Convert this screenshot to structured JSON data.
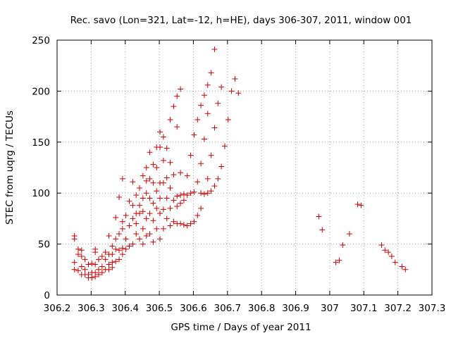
{
  "chart_data": {
    "type": "scatter",
    "title": "Rec. savo (Lon=321, Lat=-12, h=HE), days 306-307, 2011, window 001",
    "xlabel": "GPS time / Days of year 2011",
    "ylabel": "STEC from uqrg / TECUs",
    "xlim": [
      306.2,
      307.3
    ],
    "ylim": [
      0,
      250
    ],
    "xticks": [
      "306.2",
      "306.3",
      "306.4",
      "306.5",
      "306.6",
      "306.7",
      "306.8",
      "306.9",
      "307",
      "307.1",
      "307.2",
      "307.3"
    ],
    "yticks": [
      "0",
      "50",
      "100",
      "150",
      "200",
      "250"
    ],
    "grid": true,
    "marker": "plus",
    "color": "#cc0000",
    "points": [
      [
        306.251,
        58
      ],
      [
        306.251,
        55
      ],
      [
        306.251,
        32
      ],
      [
        306.251,
        25
      ],
      [
        306.262,
        45
      ],
      [
        306.262,
        40
      ],
      [
        306.262,
        24
      ],
      [
        306.272,
        44
      ],
      [
        306.272,
        38
      ],
      [
        306.272,
        28
      ],
      [
        306.272,
        20
      ],
      [
        306.282,
        35
      ],
      [
        306.282,
        25
      ],
      [
        306.282,
        20
      ],
      [
        306.292,
        30
      ],
      [
        306.292,
        20
      ],
      [
        306.292,
        17
      ],
      [
        306.302,
        31
      ],
      [
        306.302,
        22
      ],
      [
        306.302,
        17
      ],
      [
        306.312,
        45
      ],
      [
        306.312,
        42
      ],
      [
        306.312,
        30
      ],
      [
        306.312,
        22
      ],
      [
        306.312,
        18
      ],
      [
        306.322,
        35
      ],
      [
        306.322,
        25
      ],
      [
        306.322,
        20
      ],
      [
        306.332,
        38
      ],
      [
        306.332,
        28
      ],
      [
        306.332,
        22
      ],
      [
        306.342,
        42
      ],
      [
        306.342,
        35
      ],
      [
        306.342,
        25
      ],
      [
        306.352,
        58
      ],
      [
        306.352,
        40
      ],
      [
        306.352,
        30
      ],
      [
        306.352,
        25
      ],
      [
        306.362,
        48
      ],
      [
        306.362,
        40
      ],
      [
        306.362,
        32
      ],
      [
        306.362,
        27
      ],
      [
        306.372,
        76
      ],
      [
        306.372,
        55
      ],
      [
        306.372,
        45
      ],
      [
        306.372,
        33
      ],
      [
        306.382,
        96
      ],
      [
        306.382,
        60
      ],
      [
        306.382,
        44
      ],
      [
        306.382,
        35
      ],
      [
        306.392,
        114
      ],
      [
        306.392,
        72
      ],
      [
        306.392,
        65
      ],
      [
        306.392,
        46
      ],
      [
        306.392,
        40
      ],
      [
        306.402,
        78
      ],
      [
        306.402,
        55
      ],
      [
        306.402,
        45
      ],
      [
        306.412,
        92
      ],
      [
        306.412,
        68
      ],
      [
        306.412,
        48
      ],
      [
        306.422,
        111
      ],
      [
        306.422,
        88
      ],
      [
        306.422,
        75
      ],
      [
        306.422,
        50
      ],
      [
        306.432,
        98
      ],
      [
        306.432,
        80
      ],
      [
        306.432,
        70
      ],
      [
        306.432,
        60
      ],
      [
        306.442,
        105
      ],
      [
        306.442,
        88
      ],
      [
        306.442,
        80
      ],
      [
        306.442,
        55
      ],
      [
        306.452,
        117
      ],
      [
        306.452,
        95
      ],
      [
        306.452,
        82
      ],
      [
        306.452,
        65
      ],
      [
        306.452,
        50
      ],
      [
        306.462,
        125
      ],
      [
        306.462,
        112
      ],
      [
        306.462,
        100
      ],
      [
        306.462,
        75
      ],
      [
        306.462,
        58
      ],
      [
        306.472,
        140
      ],
      [
        306.472,
        114
      ],
      [
        306.472,
        95
      ],
      [
        306.472,
        80
      ],
      [
        306.472,
        60
      ],
      [
        306.482,
        128
      ],
      [
        306.482,
        110
      ],
      [
        306.482,
        90
      ],
      [
        306.482,
        73
      ],
      [
        306.482,
        52
      ],
      [
        306.492,
        145
      ],
      [
        306.492,
        125
      ],
      [
        306.492,
        102
      ],
      [
        306.492,
        85
      ],
      [
        306.492,
        65
      ],
      [
        306.502,
        160
      ],
      [
        306.502,
        145
      ],
      [
        306.502,
        110
      ],
      [
        306.502,
        95
      ],
      [
        306.502,
        80
      ],
      [
        306.502,
        55
      ],
      [
        306.512,
        155
      ],
      [
        306.512,
        132
      ],
      [
        306.512,
        110
      ],
      [
        306.512,
        84
      ],
      [
        306.512,
        65
      ],
      [
        306.522,
        144
      ],
      [
        306.522,
        115
      ],
      [
        306.522,
        95
      ],
      [
        306.522,
        75
      ],
      [
        306.532,
        172
      ],
      [
        306.532,
        130
      ],
      [
        306.532,
        105
      ],
      [
        306.532,
        85
      ],
      [
        306.532,
        68
      ],
      [
        306.542,
        185
      ],
      [
        306.542,
        118
      ],
      [
        306.542,
        93
      ],
      [
        306.542,
        72
      ],
      [
        306.552,
        195
      ],
      [
        306.552,
        165
      ],
      [
        306.552,
        97
      ],
      [
        306.552,
        87
      ],
      [
        306.552,
        70
      ],
      [
        306.562,
        202
      ],
      [
        306.562,
        120
      ],
      [
        306.562,
        98
      ],
      [
        306.562,
        90
      ],
      [
        306.562,
        70
      ],
      [
        306.572,
        99
      ],
      [
        306.572,
        93
      ],
      [
        306.572,
        69
      ],
      [
        306.582,
        117
      ],
      [
        306.582,
        98
      ],
      [
        306.582,
        68
      ],
      [
        306.592,
        137
      ],
      [
        306.592,
        100
      ],
      [
        306.592,
        70
      ],
      [
        306.602,
        157
      ],
      [
        306.602,
        101
      ],
      [
        306.602,
        72
      ],
      [
        306.612,
        172
      ],
      [
        306.612,
        111
      ],
      [
        306.612,
        78
      ],
      [
        306.622,
        186
      ],
      [
        306.622,
        129
      ],
      [
        306.622,
        100
      ],
      [
        306.622,
        85
      ],
      [
        306.632,
        196
      ],
      [
        306.632,
        153
      ],
      [
        306.632,
        99
      ],
      [
        306.642,
        206
      ],
      [
        306.642,
        178
      ],
      [
        306.642,
        114
      ],
      [
        306.642,
        100
      ],
      [
        306.652,
        218
      ],
      [
        306.652,
        137
      ],
      [
        306.652,
        102
      ],
      [
        306.662,
        241
      ],
      [
        306.662,
        164
      ],
      [
        306.662,
        107
      ],
      [
        306.672,
        188
      ],
      [
        306.672,
        114
      ],
      [
        306.682,
        204
      ],
      [
        306.682,
        126
      ],
      [
        306.692,
        146
      ],
      [
        306.702,
        172
      ],
      [
        306.712,
        200
      ],
      [
        306.722,
        212
      ],
      [
        306.732,
        198
      ],
      [
        306.968,
        77
      ],
      [
        306.978,
        64
      ],
      [
        307.018,
        32
      ],
      [
        307.028,
        34
      ],
      [
        307.038,
        49
      ],
      [
        307.058,
        60
      ],
      [
        307.082,
        89
      ],
      [
        307.092,
        88
      ],
      [
        307.152,
        49
      ],
      [
        307.162,
        44
      ],
      [
        307.172,
        42
      ],
      [
        307.182,
        38
      ],
      [
        307.192,
        32
      ],
      [
        307.212,
        28
      ],
      [
        307.222,
        25
      ]
    ]
  }
}
